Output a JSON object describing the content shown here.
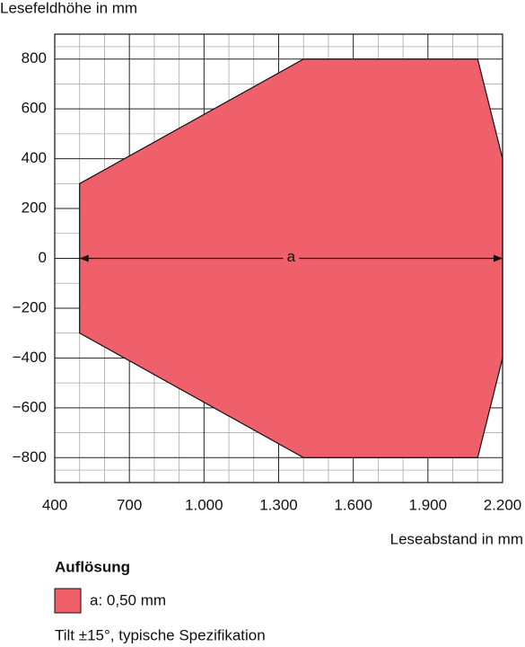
{
  "chart_data": {
    "type": "polygon",
    "y_label": "Lesefeldhöhe in mm",
    "x_label": "Leseabstand in mm",
    "legend_title": "Auflösung",
    "note": "Tilt ±15°, typische Spezifikation",
    "annotation": {
      "text": "a",
      "y": 0
    },
    "series": [
      {
        "name": "a: 0,50 mm",
        "color": "#f0606a",
        "x": [
          500,
          1400,
          2100,
          2200,
          2200,
          2100,
          1400,
          500
        ],
        "y": [
          300,
          800,
          800,
          400,
          -400,
          -800,
          -800,
          -300
        ]
      }
    ],
    "xlim": [
      400,
      2200
    ],
    "ylim": [
      -900,
      900
    ],
    "xticks": [
      400,
      700,
      {
        "value": 1000,
        "label": "1.000"
      },
      {
        "value": 1300,
        "label": "1.300"
      },
      {
        "value": 1600,
        "label": "1.600"
      },
      {
        "value": 1900,
        "label": "1.900"
      },
      {
        "value": 2200,
        "label": "2.200"
      }
    ],
    "yticks": [
      800,
      600,
      400,
      200,
      0,
      {
        "value": -200,
        "label": "−200"
      },
      {
        "value": -400,
        "label": "−400"
      },
      {
        "value": -600,
        "label": "−600"
      },
      {
        "value": -800,
        "label": "−800"
      }
    ],
    "grid": true
  }
}
